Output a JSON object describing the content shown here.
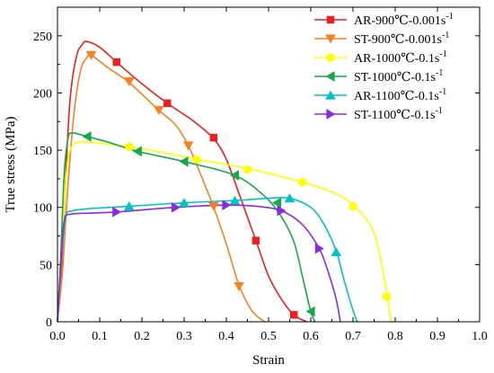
{
  "chart_data": {
    "type": "line",
    "title": "",
    "xlabel": "Strain",
    "ylabel": "True stress (MPa)",
    "xlim": [
      0.0,
      1.0
    ],
    "ylim": [
      0,
      275
    ],
    "xticks": [
      "0.0",
      "0.1",
      "0.2",
      "0.3",
      "0.4",
      "0.5",
      "0.6",
      "0.7",
      "0.8",
      "0.9",
      "1.0"
    ],
    "xtick_values": [
      0.0,
      0.1,
      0.2,
      0.3,
      0.4,
      0.5,
      0.6,
      0.7,
      0.8,
      0.9,
      1.0
    ],
    "yticks": [
      "0",
      "50",
      "100",
      "150",
      "200",
      "250"
    ],
    "ytick_values": [
      0,
      50,
      100,
      150,
      200,
      250
    ],
    "grid": false,
    "legend_position": "top-right",
    "series": [
      {
        "name": "AR-900℃-0.001s",
        "name_sup": "-1",
        "color": "#e8201f",
        "marker": "square",
        "points": [
          [
            0,
            0
          ],
          [
            0.01,
            50
          ],
          [
            0.02,
            130
          ],
          [
            0.03,
            195
          ],
          [
            0.045,
            232
          ],
          [
            0.06,
            243
          ],
          [
            0.07,
            245
          ],
          [
            0.1,
            240
          ],
          [
            0.14,
            227
          ],
          [
            0.2,
            208
          ],
          [
            0.26,
            191
          ],
          [
            0.32,
            176
          ],
          [
            0.37,
            160
          ],
          [
            0.4,
            142
          ],
          [
            0.43,
            112
          ],
          [
            0.47,
            71
          ],
          [
            0.5,
            40
          ],
          [
            0.53,
            20
          ],
          [
            0.56,
            6
          ],
          [
            0.59,
            0
          ]
        ],
        "markers": [
          [
            0.14,
            227
          ],
          [
            0.26,
            191
          ],
          [
            0.37,
            161
          ],
          [
            0.47,
            71
          ],
          [
            0.56,
            6
          ]
        ]
      },
      {
        "name": "ST-900℃-0.001s",
        "name_sup": "-1",
        "color": "#f58220",
        "marker": "triangle-down",
        "points": [
          [
            0,
            0
          ],
          [
            0.012,
            45
          ],
          [
            0.025,
            120
          ],
          [
            0.04,
            185
          ],
          [
            0.055,
            220
          ],
          [
            0.07,
            231
          ],
          [
            0.08,
            233
          ],
          [
            0.12,
            222
          ],
          [
            0.17,
            209
          ],
          [
            0.24,
            185
          ],
          [
            0.28,
            172
          ],
          [
            0.31,
            154
          ],
          [
            0.34,
            128
          ],
          [
            0.37,
            100
          ],
          [
            0.4,
            68
          ],
          [
            0.43,
            32
          ],
          [
            0.46,
            10
          ],
          [
            0.49,
            0
          ]
        ],
        "markers": [
          [
            0.08,
            233
          ],
          [
            0.17,
            210
          ],
          [
            0.24,
            185
          ],
          [
            0.31,
            154
          ],
          [
            0.37,
            101
          ],
          [
            0.43,
            31
          ]
        ]
      },
      {
        "name": "AR-1000℃-0.1s",
        "name_sup": "-1",
        "color": "#ffff00",
        "marker": "circle",
        "points": [
          [
            0,
            0
          ],
          [
            0.01,
            60
          ],
          [
            0.02,
            125
          ],
          [
            0.03,
            150
          ],
          [
            0.05,
            157
          ],
          [
            0.1,
            156
          ],
          [
            0.17,
            153
          ],
          [
            0.25,
            148
          ],
          [
            0.33,
            142
          ],
          [
            0.45,
            134
          ],
          [
            0.58,
            122
          ],
          [
            0.66,
            112
          ],
          [
            0.7,
            102
          ],
          [
            0.74,
            85
          ],
          [
            0.76,
            65
          ],
          [
            0.78,
            25
          ],
          [
            0.79,
            0
          ]
        ],
        "markers": [
          [
            0.17,
            153
          ],
          [
            0.33,
            142
          ],
          [
            0.45,
            133
          ],
          [
            0.58,
            122
          ],
          [
            0.7,
            101
          ],
          [
            0.78,
            22
          ]
        ]
      },
      {
        "name": "ST-1000℃-0.1s",
        "name_sup": "-1",
        "color": "#17a84a",
        "marker": "triangle-left",
        "points": [
          [
            0,
            0
          ],
          [
            0.008,
            60
          ],
          [
            0.016,
            130
          ],
          [
            0.025,
            160
          ],
          [
            0.035,
            165
          ],
          [
            0.07,
            162
          ],
          [
            0.12,
            157
          ],
          [
            0.19,
            149
          ],
          [
            0.3,
            140
          ],
          [
            0.42,
            128
          ],
          [
            0.49,
            110
          ],
          [
            0.53,
            92
          ],
          [
            0.56,
            70
          ],
          [
            0.58,
            40
          ],
          [
            0.6,
            9
          ],
          [
            0.61,
            0
          ]
        ],
        "markers": [
          [
            0.07,
            162
          ],
          [
            0.19,
            149
          ],
          [
            0.3,
            140
          ],
          [
            0.42,
            128
          ],
          [
            0.52,
            104
          ],
          [
            0.6,
            9
          ]
        ]
      },
      {
        "name": "AR-1100℃-0.1s",
        "name_sup": "-1",
        "color": "#00c2c7",
        "marker": "triangle-up",
        "points": [
          [
            0,
            0
          ],
          [
            0.01,
            60
          ],
          [
            0.02,
            92
          ],
          [
            0.035,
            97
          ],
          [
            0.08,
            99
          ],
          [
            0.17,
            101
          ],
          [
            0.3,
            104
          ],
          [
            0.42,
            106
          ],
          [
            0.5,
            108
          ],
          [
            0.55,
            108
          ],
          [
            0.6,
            100
          ],
          [
            0.63,
            86
          ],
          [
            0.66,
            62
          ],
          [
            0.68,
            35
          ],
          [
            0.7,
            10
          ],
          [
            0.71,
            0
          ]
        ],
        "markers": [
          [
            0.17,
            101
          ],
          [
            0.3,
            104
          ],
          [
            0.42,
            106
          ],
          [
            0.55,
            108
          ],
          [
            0.66,
            61
          ]
        ]
      },
      {
        "name": "ST-1100℃-0.1s",
        "name_sup": "-1",
        "color": "#8a2be2",
        "marker": "triangle-right",
        "points": [
          [
            0,
            0
          ],
          [
            0.008,
            50
          ],
          [
            0.016,
            88
          ],
          [
            0.03,
            94
          ],
          [
            0.08,
            95
          ],
          [
            0.14,
            96
          ],
          [
            0.28,
            100
          ],
          [
            0.4,
            102
          ],
          [
            0.47,
            101
          ],
          [
            0.53,
            97
          ],
          [
            0.58,
            85
          ],
          [
            0.62,
            64
          ],
          [
            0.64,
            45
          ],
          [
            0.66,
            20
          ],
          [
            0.67,
            0
          ]
        ],
        "markers": [
          [
            0.14,
            96
          ],
          [
            0.28,
            100
          ],
          [
            0.4,
            102
          ],
          [
            0.53,
            97
          ],
          [
            0.62,
            64
          ]
        ]
      }
    ]
  }
}
